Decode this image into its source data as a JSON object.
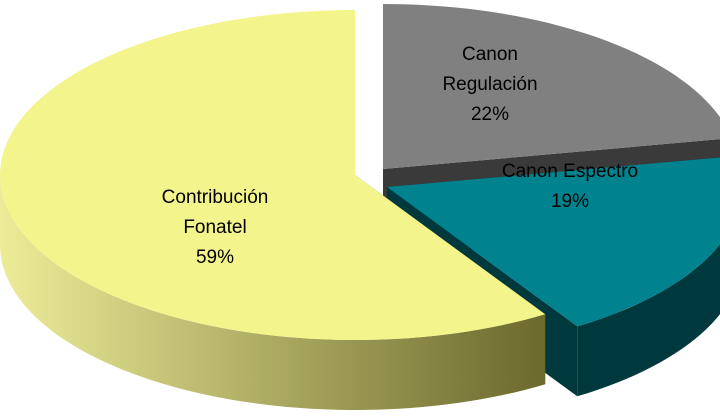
{
  "chart_data": {
    "type": "pie",
    "categories": [
      "Canon Regulación",
      "Canon Espectro",
      "Contribución Fonatel"
    ],
    "values": [
      22,
      19,
      59
    ],
    "value_labels": [
      "22%",
      "19%",
      "59%"
    ],
    "colors": [
      "#808080",
      "#00838f",
      "#f4f48c"
    ],
    "side_colors": [
      "#3a3a3a",
      "#00393d",
      "#6e6c30"
    ]
  }
}
